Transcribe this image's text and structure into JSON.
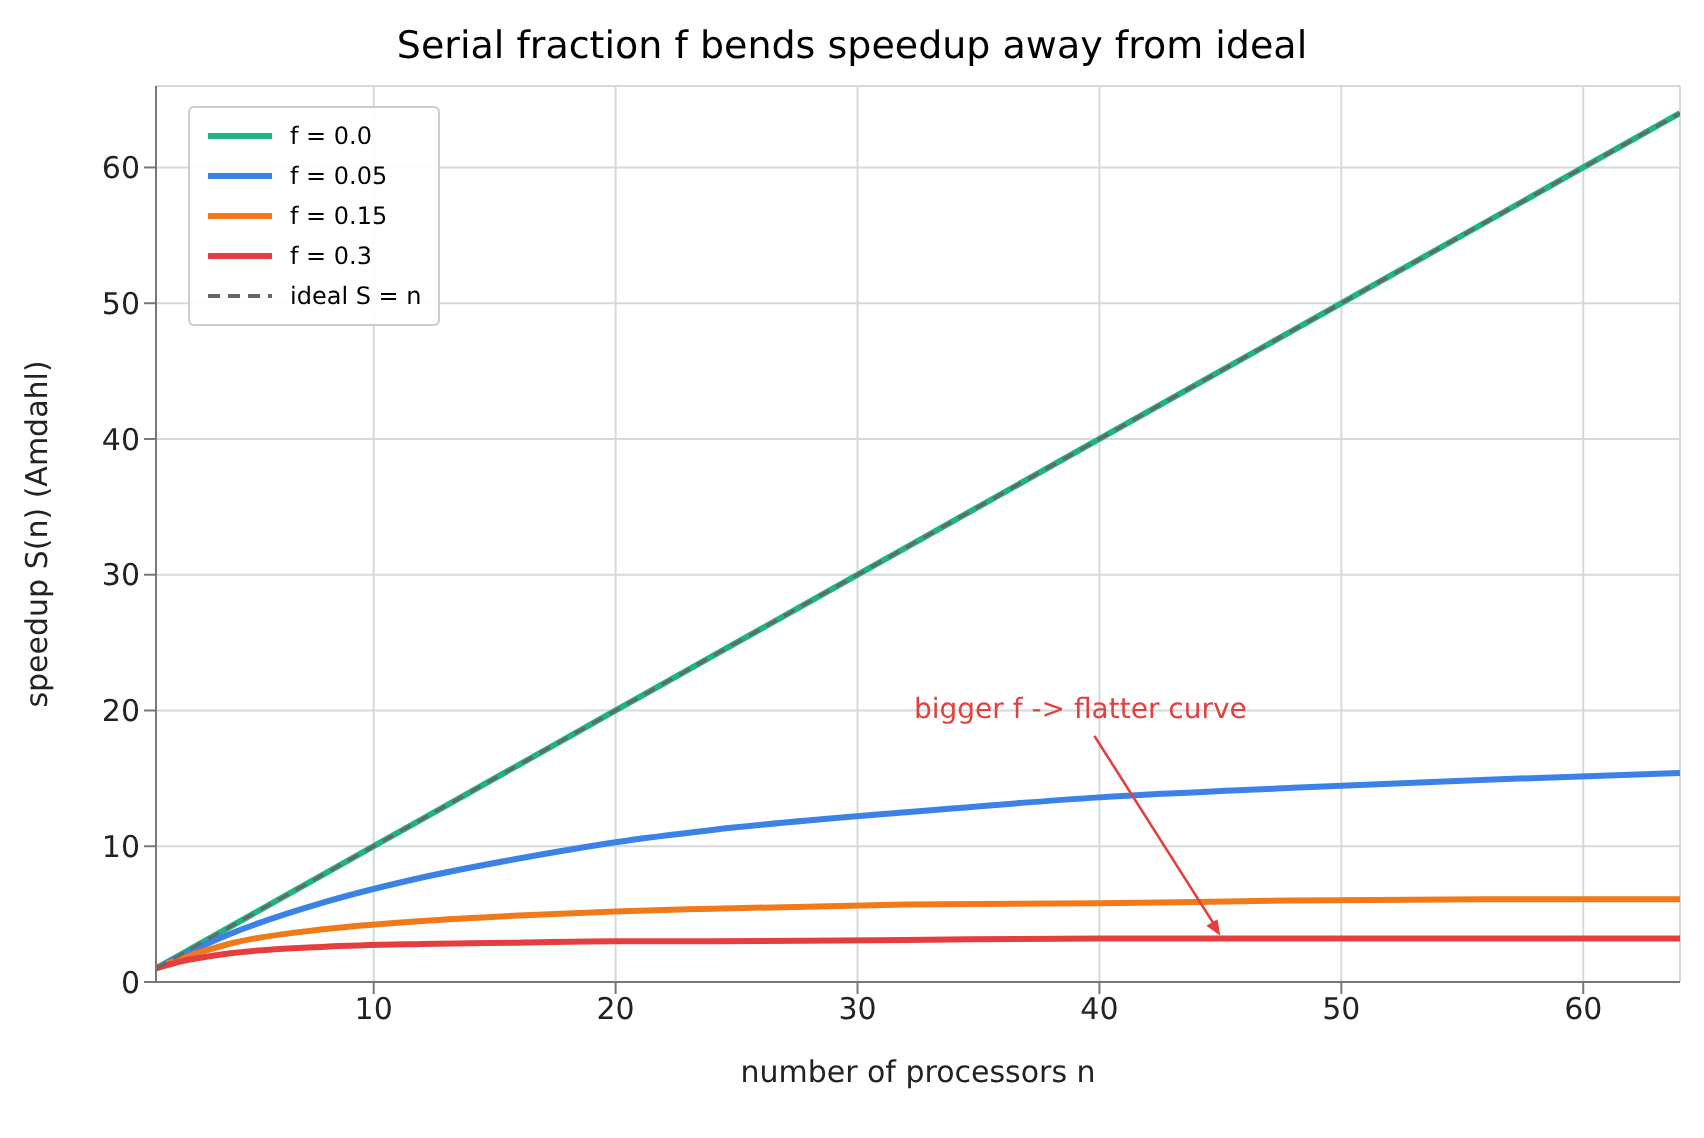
{
  "chart_data": {
    "type": "line",
    "title": "Serial fraction f bends speedup away from ideal",
    "xlabel": "number of processors  n",
    "ylabel": "speedup  S(n)  (Amdahl)",
    "x": [
      1,
      2,
      4,
      8,
      12,
      16,
      20,
      24,
      32,
      40,
      48,
      56,
      64
    ],
    "series": [
      {
        "name": "f = 0.0",
        "color": "#1db584",
        "values": [
          1,
          2,
          4,
          8,
          12,
          16,
          20,
          24,
          32,
          40,
          48,
          56,
          64
        ]
      },
      {
        "name": "f = 0.05",
        "color": "#3b82e6",
        "values": [
          1,
          1.9,
          3.5,
          5.9,
          7.7,
          9.1,
          10.3,
          11.2,
          12.5,
          13.6,
          14.3,
          14.9,
          15.4
        ]
      },
      {
        "name": "f = 0.15",
        "color": "#f07a1a",
        "values": [
          1,
          1.7,
          2.8,
          3.9,
          4.5,
          4.9,
          5.2,
          5.4,
          5.7,
          5.8,
          6,
          6.1,
          6.1
        ]
      },
      {
        "name": "f = 0.3",
        "color": "#e53e3e",
        "values": [
          1,
          1.5,
          2.1,
          2.6,
          2.8,
          2.9,
          3,
          3,
          3.1,
          3.2,
          3.2,
          3.2,
          3.2
        ]
      },
      {
        "name": "ideal  S = n",
        "color": "#666666",
        "line_style": "dashed",
        "values": [
          1,
          2,
          4,
          8,
          12,
          16,
          20,
          24,
          32,
          40,
          48,
          56,
          64
        ]
      }
    ],
    "xlim": [
      1,
      64
    ],
    "xticks": [
      10,
      20,
      30,
      40,
      50,
      60
    ],
    "ylim": [
      0,
      66
    ],
    "yticks": [
      0,
      10,
      20,
      30,
      40,
      50,
      60
    ],
    "grid": true,
    "legend": "top left",
    "marker": "none",
    "line_style": "solid",
    "annotations": [
      {
        "text": "bigger f -> flatter curve",
        "x": 45,
        "y": 3.4
      }
    ]
  }
}
